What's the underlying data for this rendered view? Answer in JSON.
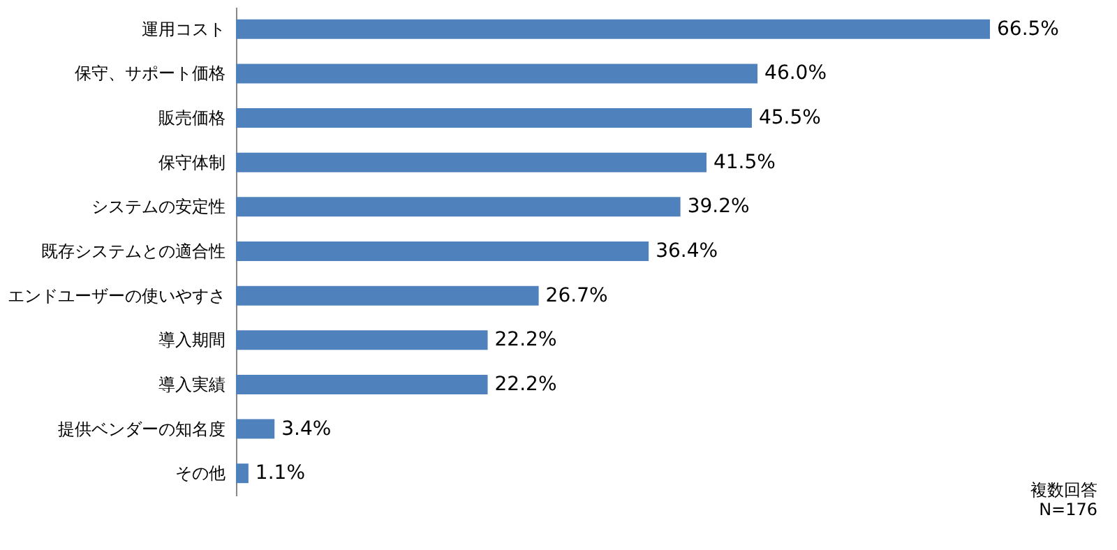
{
  "chart_data": {
    "type": "bar",
    "orientation": "horizontal",
    "categories": [
      "運用コスト",
      "保守、サポート価格",
      "販売価格",
      "保守体制",
      "システムの安定性",
      "既存システムとの適合性",
      "エンドユーザーの使いやすさ",
      "導入期間",
      "導入実績",
      "提供ベンダーの知名度",
      "その他"
    ],
    "values": [
      66.5,
      46.0,
      45.5,
      41.5,
      39.2,
      36.4,
      26.7,
      22.2,
      22.2,
      3.4,
      1.1
    ],
    "value_labels": [
      "66.5%",
      "46.0%",
      "45.5%",
      "41.5%",
      "39.2%",
      "36.4%",
      "26.7%",
      "22.2%",
      "22.2%",
      "3.4%",
      "1.1%"
    ],
    "color": "#4f81bd",
    "annotations": [
      "複数回答",
      "N=176"
    ]
  }
}
